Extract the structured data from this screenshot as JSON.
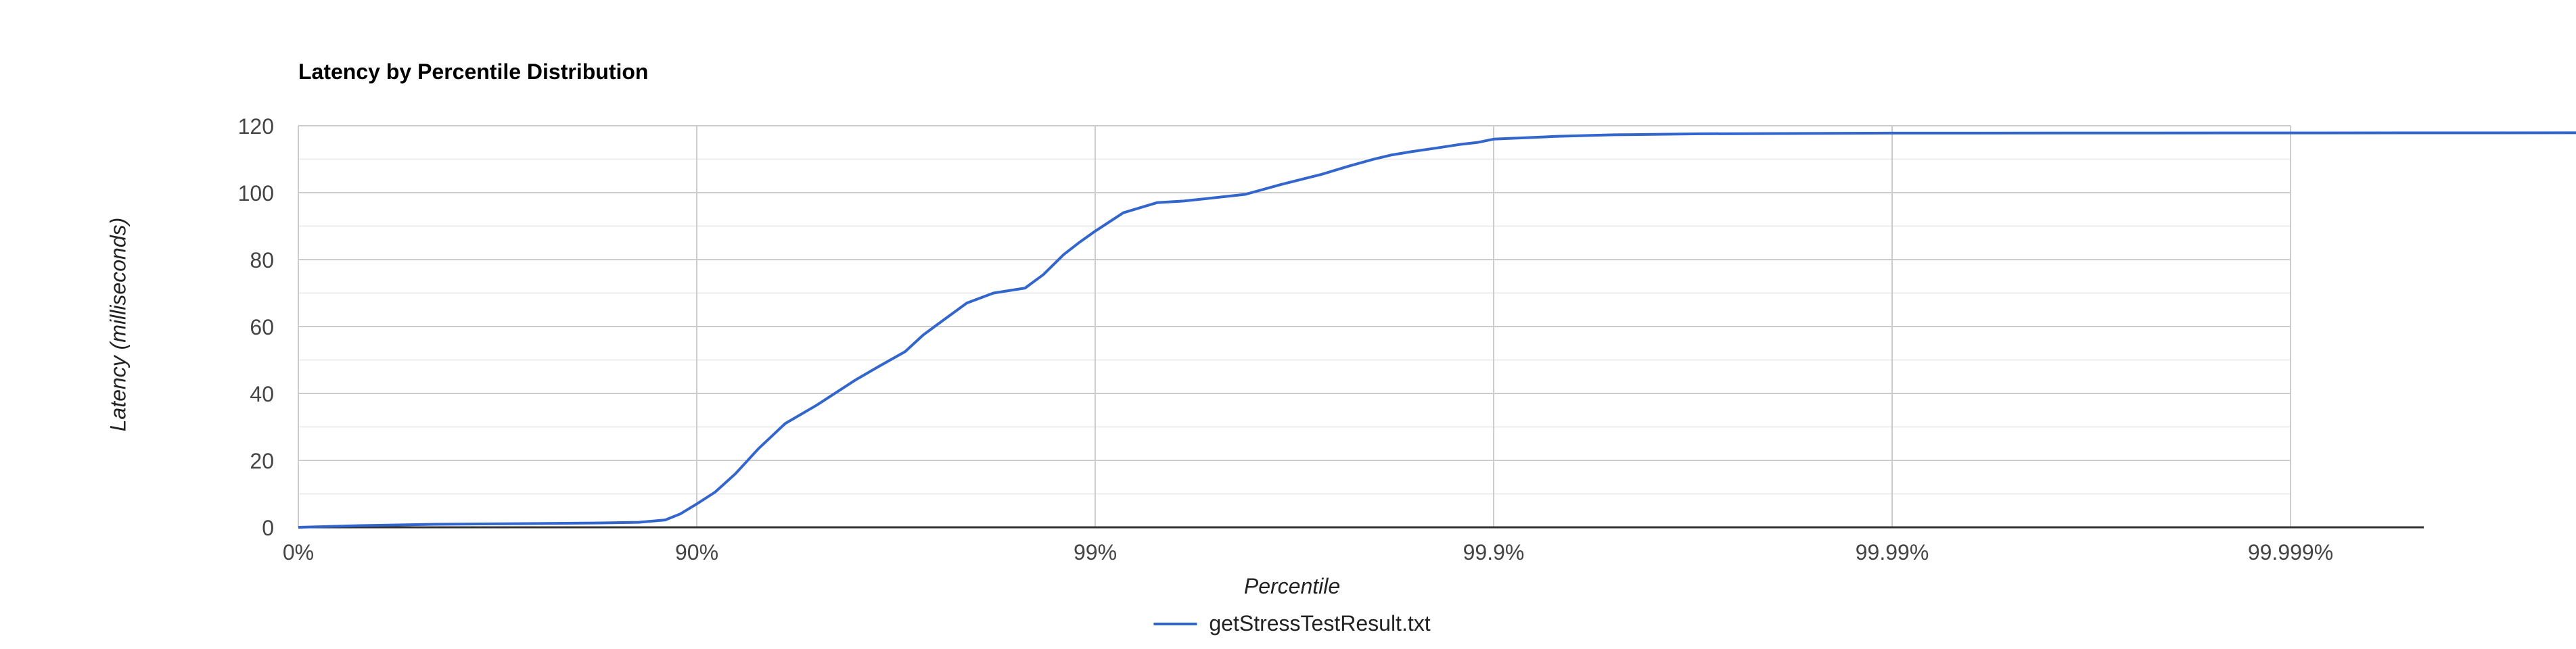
{
  "chart_data": {
    "type": "line",
    "title": "Latency by Percentile Distribution",
    "xlabel": "Percentile",
    "ylabel": "Latency (milliseconds)",
    "x_scale": "log-percentile",
    "x_ticks": [
      {
        "value": 0,
        "label": "0%"
      },
      {
        "value": 90,
        "label": "90%"
      },
      {
        "value": 99,
        "label": "99%"
      },
      {
        "value": 99.9,
        "label": "99.9%"
      },
      {
        "value": 99.99,
        "label": "99.99%"
      },
      {
        "value": 99.999,
        "label": "99.999%"
      }
    ],
    "y_ticks": [
      0,
      20,
      40,
      60,
      80,
      100,
      120
    ],
    "ylim": [
      0,
      120
    ],
    "grid": true,
    "legend_position": "bottom",
    "series": [
      {
        "name": "getStressTestResult.txt",
        "color": "#3366cc",
        "points": [
          [
            0,
            0
          ],
          [
            30,
            0.5
          ],
          [
            55,
            0.9
          ],
          [
            72,
            1.1
          ],
          [
            82,
            1.3
          ],
          [
            86,
            1.5
          ],
          [
            88,
            2.2
          ],
          [
            89,
            4.0
          ],
          [
            90,
            7.0
          ],
          [
            91,
            10.5
          ],
          [
            92,
            16.0
          ],
          [
            93,
            23.5
          ],
          [
            94,
            31.0
          ],
          [
            95,
            36.5
          ],
          [
            96,
            44.0
          ],
          [
            96.5,
            48.0
          ],
          [
            97,
            52.5
          ],
          [
            97.3,
            57.5
          ],
          [
            97.6,
            62.0
          ],
          [
            97.9,
            67.0
          ],
          [
            98.2,
            70.0
          ],
          [
            98.5,
            71.5
          ],
          [
            98.65,
            75.5
          ],
          [
            98.8,
            81.5
          ],
          [
            98.9,
            85.0
          ],
          [
            99.0,
            88.5
          ],
          [
            99.15,
            94.0
          ],
          [
            99.3,
            97.0
          ],
          [
            99.4,
            97.5
          ],
          [
            99.5,
            98.5
          ],
          [
            99.58,
            99.5
          ],
          [
            99.66,
            102.5
          ],
          [
            99.73,
            105.5
          ],
          [
            99.77,
            108.0
          ],
          [
            99.8,
            110.0
          ],
          [
            99.82,
            111.3
          ],
          [
            99.84,
            112.3
          ],
          [
            99.86,
            113.3
          ],
          [
            99.88,
            114.5
          ],
          [
            99.89,
            115.0
          ],
          [
            99.9,
            116.0
          ],
          [
            99.93,
            116.8
          ],
          [
            99.95,
            117.3
          ],
          [
            99.97,
            117.6
          ],
          [
            99.99,
            117.8
          ],
          [
            99.9999,
            117.9
          ]
        ]
      }
    ]
  }
}
